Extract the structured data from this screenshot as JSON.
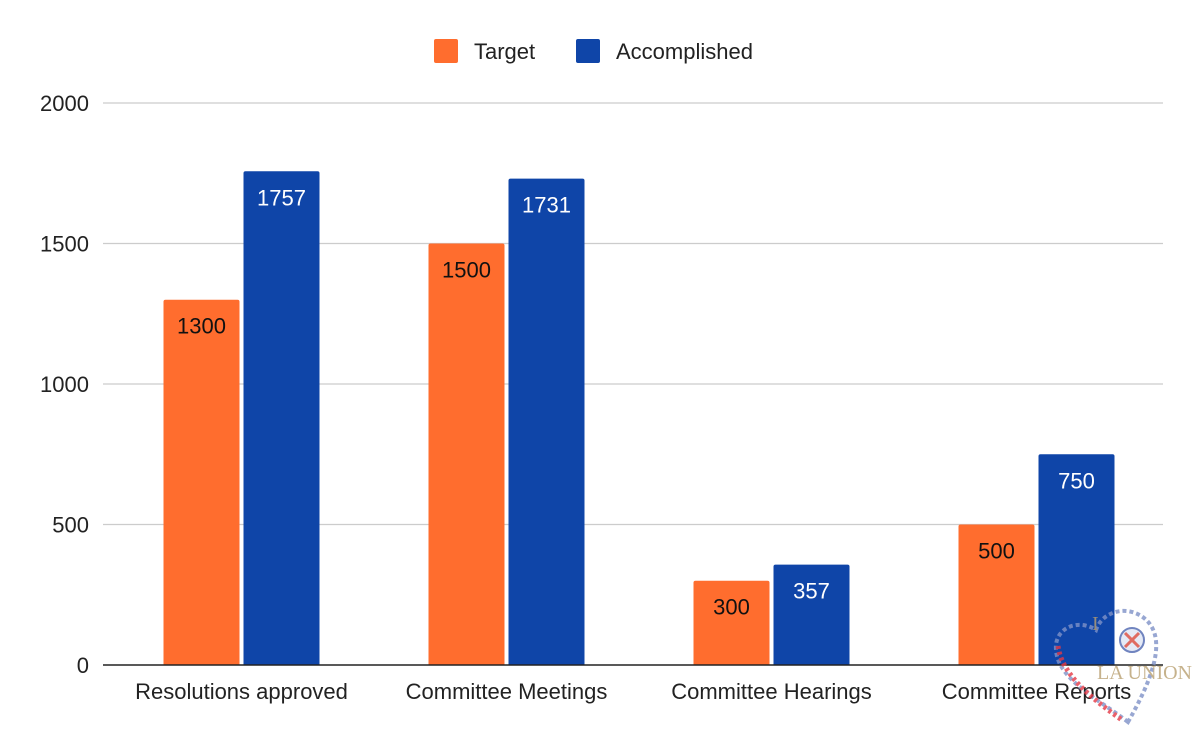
{
  "chart_data": {
    "type": "bar",
    "categories": [
      "Resolutions approved",
      "Committee Meetings",
      "Committee Hearings",
      "Committee Reports"
    ],
    "series": [
      {
        "name": "Target",
        "color": "#ff6d2e",
        "label_color": "#111111",
        "values": [
          1300,
          1500,
          300,
          500
        ]
      },
      {
        "name": "Accomplished",
        "color": "#0f45a8",
        "label_color": "#ffffff",
        "values": [
          1757,
          1731,
          357,
          750
        ]
      }
    ],
    "title": "",
    "xlabel": "",
    "ylabel": "",
    "ylim": [
      0,
      2000
    ],
    "yticks": [
      0,
      500,
      1000,
      1500,
      2000
    ],
    "grid": true,
    "legend": "top-center",
    "data_labels": "inside-top"
  },
  "watermark": {
    "text_top": "I",
    "text_main": "LA UNION",
    "icon": "heart-seal-logo-icon"
  }
}
